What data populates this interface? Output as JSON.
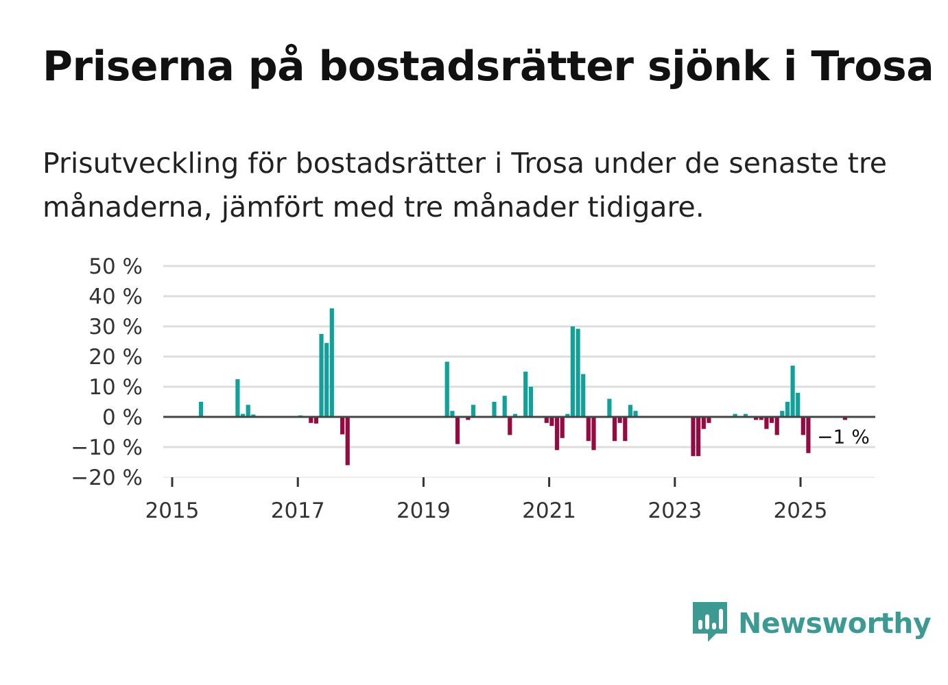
{
  "title": "Priserna på bostadsrätter sjönk i Trosa",
  "subtitle": "Prisutveckling för bostadsrätter i Trosa under de senaste tre månaderna, jämfört med tre månader tidigare.",
  "brand": {
    "name": "Newsworthy",
    "color": "#3d9a93"
  },
  "colors": {
    "positive": "#12a19a",
    "negative": "#960a42",
    "zero_line": "#444444",
    "grid": "#dddddd"
  },
  "chart_data": {
    "type": "bar",
    "title": "Priserna på bostadsrätter sjönk i Trosa",
    "xlabel": "",
    "ylabel": "",
    "ylim": [
      -20,
      50
    ],
    "xlim": [
      2015,
      2026.3
    ],
    "yticks": [
      {
        "value": 50,
        "label": "50 %"
      },
      {
        "value": 40,
        "label": "40 %"
      },
      {
        "value": 30,
        "label": "30 %"
      },
      {
        "value": 20,
        "label": "20 %"
      },
      {
        "value": 10,
        "label": "10 %"
      },
      {
        "value": 0,
        "label": "0 %"
      },
      {
        "value": -10,
        "label": "−10 %"
      },
      {
        "value": -20,
        "label": "−20 %"
      }
    ],
    "xticks": [
      {
        "value": 2015,
        "label": "2015"
      },
      {
        "value": 2017,
        "label": "2017"
      },
      {
        "value": 2019,
        "label": "2019"
      },
      {
        "value": 2021,
        "label": "2021"
      },
      {
        "value": 2023,
        "label": "2023"
      },
      {
        "value": 2025,
        "label": "2025"
      }
    ],
    "annotation": {
      "label": "−1 %",
      "date": "2025-09",
      "value": -1
    },
    "bars": [
      [
        "2015-06",
        5
      ],
      [
        "2016-01",
        12.5
      ],
      [
        "2016-02",
        1
      ],
      [
        "2016-03",
        4
      ],
      [
        "2016-04",
        0.8
      ],
      [
        "2017-01",
        0.5
      ],
      [
        "2017-03",
        -2
      ],
      [
        "2017-04",
        -2.2
      ],
      [
        "2017-05",
        27.5
      ],
      [
        "2017-06",
        24.5
      ],
      [
        "2017-07",
        36
      ],
      [
        "2017-09",
        -5.8
      ],
      [
        "2017-10",
        -16
      ],
      [
        "2019-05",
        18.3
      ],
      [
        "2019-06",
        2
      ],
      [
        "2019-07",
        -9
      ],
      [
        "2019-09",
        -1
      ],
      [
        "2019-10",
        4
      ],
      [
        "2020-02",
        5
      ],
      [
        "2020-04",
        7
      ],
      [
        "2020-05",
        -6
      ],
      [
        "2020-06",
        1
      ],
      [
        "2020-08",
        15
      ],
      [
        "2020-09",
        10
      ],
      [
        "2020-12",
        -2
      ],
      [
        "2021-01",
        -3
      ],
      [
        "2021-02",
        -11
      ],
      [
        "2021-03",
        -7
      ],
      [
        "2021-04",
        1
      ],
      [
        "2021-05",
        30
      ],
      [
        "2021-06",
        29.2
      ],
      [
        "2021-07",
        14.2
      ],
      [
        "2021-08",
        -8
      ],
      [
        "2021-09",
        -11
      ],
      [
        "2021-12",
        6
      ],
      [
        "2022-01",
        -8
      ],
      [
        "2022-02",
        -2
      ],
      [
        "2022-03",
        -8
      ],
      [
        "2022-04",
        4
      ],
      [
        "2022-05",
        2
      ],
      [
        "2023-04",
        -13
      ],
      [
        "2023-05",
        -13
      ],
      [
        "2023-06",
        -4
      ],
      [
        "2023-07",
        -2
      ],
      [
        "2023-12",
        1
      ],
      [
        "2024-02",
        1
      ],
      [
        "2024-04",
        -1
      ],
      [
        "2024-05",
        -1
      ],
      [
        "2024-06",
        -4
      ],
      [
        "2024-07",
        -2
      ],
      [
        "2024-08",
        -6
      ],
      [
        "2024-09",
        2
      ],
      [
        "2024-10",
        5
      ],
      [
        "2024-11",
        17
      ],
      [
        "2024-12",
        8
      ],
      [
        "2025-01",
        -6
      ],
      [
        "2025-02",
        -12
      ],
      [
        "2025-09",
        -1
      ]
    ]
  }
}
